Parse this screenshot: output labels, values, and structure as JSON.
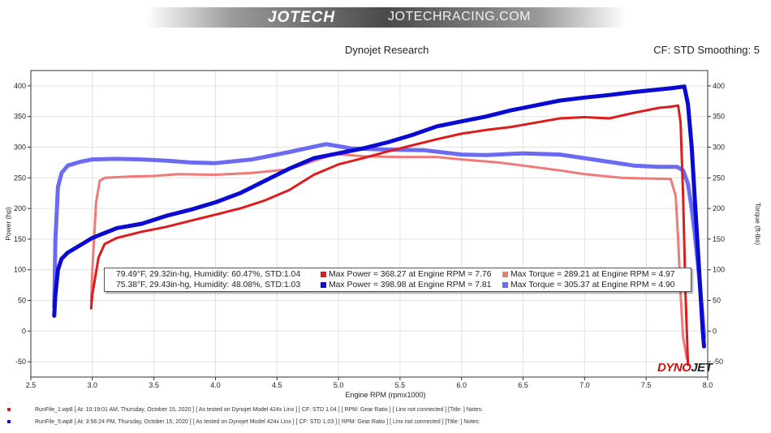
{
  "banner": {
    "logo_text": "JOTECH",
    "site_text": "JOTECHRACING.COM"
  },
  "header": {
    "title": "Dynojet Research",
    "settings": "CF: STD Smoothing: 5"
  },
  "brand_mark": {
    "part1": "DYNO",
    "part2": "JET"
  },
  "colors": {
    "run1_power": "#dd1c1c",
    "run1_torque": "#ee7a7a",
    "run5_power": "#0a0ad2",
    "run5_torque": "#6b6bf2",
    "grid": "#e2e2e2",
    "frame": "#333333"
  },
  "legend": {
    "rows": [
      {
        "conditions": "79.49°F, 29.32in-hg, Humidity: 60.47%, STD:1.04",
        "max_power": "Max Power = 368.27 at Engine RPM = 7.76",
        "max_torque": "Max Torque = 289.21 at Engine RPM = 4.97"
      },
      {
        "conditions": "75.38°F, 29.43in-hg, Humidity: 48.08%, STD:1.03",
        "max_power": "Max Power = 398.98 at Engine RPM = 7.81",
        "max_torque": "Max Torque = 305.37 at Engine RPM = 4.90"
      }
    ]
  },
  "footer": [
    "RunFile_1.wp8  [ At:  10:19:01 AM, Thursday, October 15, 2020 ]  [ As tested on Dynojet Model 424x Linx ]  [ CF: STD 1.04 ]  [ RPM:  Gear Ratio ]  [ Linx not connected ]  [Title: ]  Notes:",
    "RunFile_5.wp8  [ At:  3:56:24 PM, Thursday, October 15, 2020 ]  [ As tested on Dynojet Model 424x Linx ]  [ CF: STD 1.03 ]  [ RPM:  Gear Ratio ]  [ Linx not connected ]  [Title: ]  Notes:"
  ],
  "chart_data": {
    "type": "line",
    "title": "Dynojet Research",
    "xlabel": "Engine RPM (rpmx1000)",
    "ylabel": "Power (hp)",
    "y2label": "Torque (ft-lbs)",
    "xlim": [
      2.5,
      8.0
    ],
    "ylim": [
      -75,
      425
    ],
    "y2lim": [
      -75,
      425
    ],
    "x_ticks": [
      "2.5",
      "3.0",
      "3.5",
      "4.0",
      "4.5",
      "5.0",
      "5.5",
      "6.0",
      "6.5",
      "7.0",
      "7.5",
      "8.0"
    ],
    "y_ticks": [
      "-50",
      "0",
      "50",
      "100",
      "150",
      "200",
      "250",
      "300",
      "350",
      "400"
    ],
    "grid": true,
    "series": [
      {
        "name": "RunFile_1 Power",
        "axis": "left",
        "color": "#dd1c1c",
        "x": [
          2.99,
          3.0,
          3.05,
          3.1,
          3.2,
          3.4,
          3.6,
          3.8,
          4.0,
          4.2,
          4.4,
          4.6,
          4.8,
          5.0,
          5.2,
          5.4,
          5.6,
          5.8,
          6.0,
          6.2,
          6.4,
          6.6,
          6.8,
          7.0,
          7.2,
          7.4,
          7.6,
          7.7,
          7.76,
          7.78,
          7.8,
          7.82,
          7.84
        ],
        "y": [
          37,
          60,
          120,
          142,
          152,
          162,
          170,
          180,
          190,
          200,
          213,
          230,
          255,
          272,
          282,
          293,
          303,
          313,
          322,
          328,
          333,
          340,
          347,
          349,
          347,
          356,
          364,
          366,
          368,
          340,
          220,
          60,
          -55
        ]
      },
      {
        "name": "RunFile_1 Torque",
        "axis": "right",
        "color": "#ee7a7a",
        "x": [
          2.99,
          3.0,
          3.03,
          3.06,
          3.1,
          3.3,
          3.5,
          3.7,
          4.0,
          4.3,
          4.6,
          4.97,
          5.2,
          5.5,
          5.8,
          6.0,
          6.3,
          6.5,
          6.8,
          7.0,
          7.3,
          7.5,
          7.7,
          7.74,
          7.76,
          7.78,
          7.8,
          7.83
        ],
        "y": [
          48,
          100,
          210,
          245,
          250,
          252,
          253,
          256,
          255,
          258,
          264,
          289,
          285,
          284,
          284,
          280,
          275,
          270,
          262,
          256,
          250,
          249,
          248,
          220,
          150,
          60,
          -10,
          -45
        ]
      },
      {
        "name": "RunFile_5 Power",
        "axis": "left",
        "color": "#0a0ad2",
        "x": [
          2.69,
          2.7,
          2.72,
          2.75,
          2.8,
          2.9,
          3.0,
          3.2,
          3.4,
          3.6,
          3.8,
          4.0,
          4.2,
          4.4,
          4.6,
          4.8,
          5.0,
          5.2,
          5.4,
          5.6,
          5.8,
          6.0,
          6.2,
          6.4,
          6.6,
          6.8,
          7.0,
          7.2,
          7.4,
          7.6,
          7.7,
          7.81,
          7.84,
          7.87,
          7.9,
          7.93,
          7.96,
          7.97
        ],
        "y": [
          25,
          60,
          100,
          118,
          128,
          140,
          152,
          168,
          175,
          188,
          198,
          210,
          225,
          245,
          265,
          282,
          290,
          298,
          308,
          320,
          334,
          342,
          350,
          360,
          368,
          376,
          381,
          385,
          390,
          394,
          396,
          399,
          370,
          300,
          200,
          100,
          0,
          -25
        ]
      },
      {
        "name": "RunFile_5 Torque",
        "axis": "right",
        "color": "#6b6bf2",
        "x": [
          2.69,
          2.7,
          2.72,
          2.75,
          2.8,
          2.9,
          3.0,
          3.2,
          3.4,
          3.6,
          3.8,
          4.0,
          4.3,
          4.6,
          4.9,
          5.1,
          5.4,
          5.7,
          6.0,
          6.2,
          6.5,
          6.8,
          7.0,
          7.2,
          7.4,
          7.6,
          7.75,
          7.8,
          7.84,
          7.87,
          7.9,
          7.93,
          7.96,
          7.97
        ],
        "y": [
          40,
          150,
          235,
          258,
          270,
          276,
          280,
          281,
          280,
          278,
          275,
          274,
          280,
          292,
          305,
          298,
          296,
          295,
          288,
          287,
          290,
          288,
          282,
          276,
          270,
          268,
          268,
          262,
          240,
          200,
          150,
          90,
          20,
          -10
        ]
      }
    ]
  }
}
